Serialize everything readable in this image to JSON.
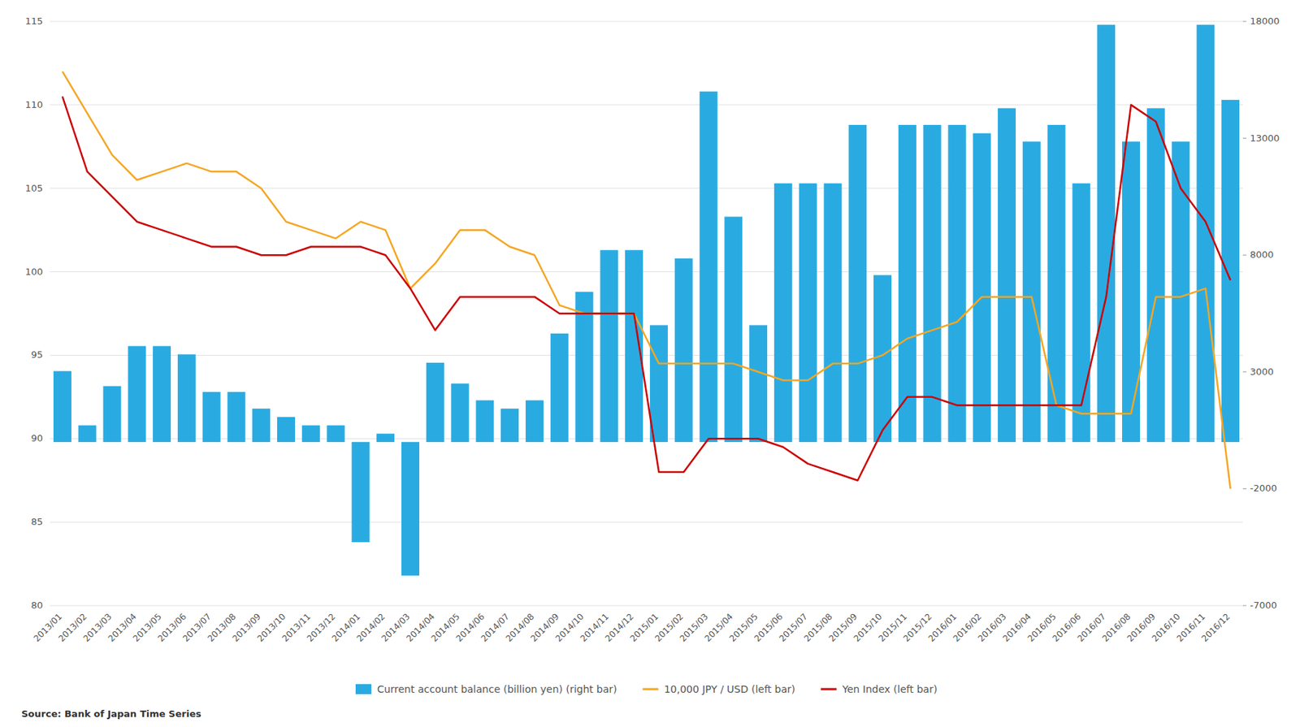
{
  "chart_data": {
    "type": "bar",
    "categories": [
      "2013/01",
      "2013/02",
      "2013/03",
      "2013/04",
      "2013/05",
      "2013/06",
      "2013/07",
      "2013/08",
      "2013/09",
      "2013/10",
      "2013/11",
      "2013/12",
      "2014/01",
      "2014/02",
      "2014/03",
      "2014/04",
      "2014/05",
      "2014/06",
      "2014/07",
      "2014/08",
      "2014/09",
      "2014/10",
      "2014/11",
      "2014/12",
      "2015/01",
      "2015/02",
      "2015/03",
      "2015/04",
      "2015/05",
      "2015/06",
      "2015/07",
      "2015/08",
      "2015/09",
      "2015/10",
      "2015/11",
      "2015/12",
      "2016/01",
      "2016/02",
      "2016/03",
      "2016/04",
      "2016/05",
      "2016/06",
      "2016/07",
      "2016/08",
      "2016/09",
      "2016/10",
      "2016/11",
      "2016/12"
    ],
    "series": [
      {
        "name": "Current account balance (billion yen) (right bar)",
        "type": "bar",
        "axis": "y2",
        "color": "#29ABE2",
        "values": [
          3036,
          714,
          2393,
          4107,
          4107,
          3750,
          2143,
          2143,
          1429,
          1071,
          714,
          714,
          -4286,
          357,
          -5714,
          3393,
          2500,
          1786,
          1429,
          1786,
          4643,
          6429,
          8214,
          8214,
          5000,
          7857,
          15000,
          9643,
          5000,
          11071,
          11071,
          11071,
          13571,
          7143,
          13571,
          13571,
          13571,
          13214,
          14286,
          12857,
          13571,
          11071,
          17857,
          12857,
          14286,
          12857,
          17857,
          14643
        ]
      },
      {
        "name": "10,000 JPY / USD (left bar)",
        "type": "line",
        "color": "#F5A623",
        "values": [
          112.0,
          109.5,
          107.0,
          105.5,
          106.0,
          106.5,
          106.0,
          106.0,
          105.0,
          103.0,
          102.5,
          102.0,
          103.0,
          102.5,
          99.0,
          100.5,
          102.5,
          102.5,
          101.5,
          101.0,
          98.0,
          97.5,
          97.5,
          97.5,
          94.5,
          94.5,
          94.5,
          94.5,
          94.0,
          93.5,
          93.5,
          94.5,
          94.5,
          95.0,
          96.0,
          96.5,
          97.0,
          98.5,
          98.5,
          98.5,
          92.0,
          91.5,
          91.5,
          91.5,
          98.5,
          98.5,
          99.0,
          87.0
        ]
      },
      {
        "name": "Yen Index (left bar)",
        "type": "line",
        "color": "#CC0000",
        "values": [
          110.5,
          106.0,
          104.5,
          103.0,
          102.5,
          102.0,
          101.5,
          101.5,
          101.0,
          101.0,
          101.5,
          101.5,
          101.5,
          101.0,
          99.0,
          96.5,
          98.5,
          98.5,
          98.5,
          98.5,
          97.5,
          97.5,
          97.5,
          97.5,
          88.0,
          88.0,
          90.0,
          90.0,
          90.0,
          89.5,
          88.5,
          88.0,
          87.5,
          90.5,
          92.5,
          92.5,
          92.0,
          92.0,
          92.0,
          92.0,
          92.0,
          92.0,
          98.5,
          110.0,
          109.0,
          105.0,
          103.0,
          99.5
        ]
      }
    ],
    "ylim": [
      80,
      115
    ],
    "yticks": [
      80,
      85,
      90,
      95,
      100,
      105,
      110,
      115
    ],
    "y2lim": [
      -7000,
      18000
    ],
    "y2ticks": [
      -7000,
      -2000,
      3000,
      8000,
      13000,
      18000
    ],
    "grid": true,
    "legend": "bottom",
    "annotations": [
      "Source: Bank of Japan Time Series"
    ]
  }
}
